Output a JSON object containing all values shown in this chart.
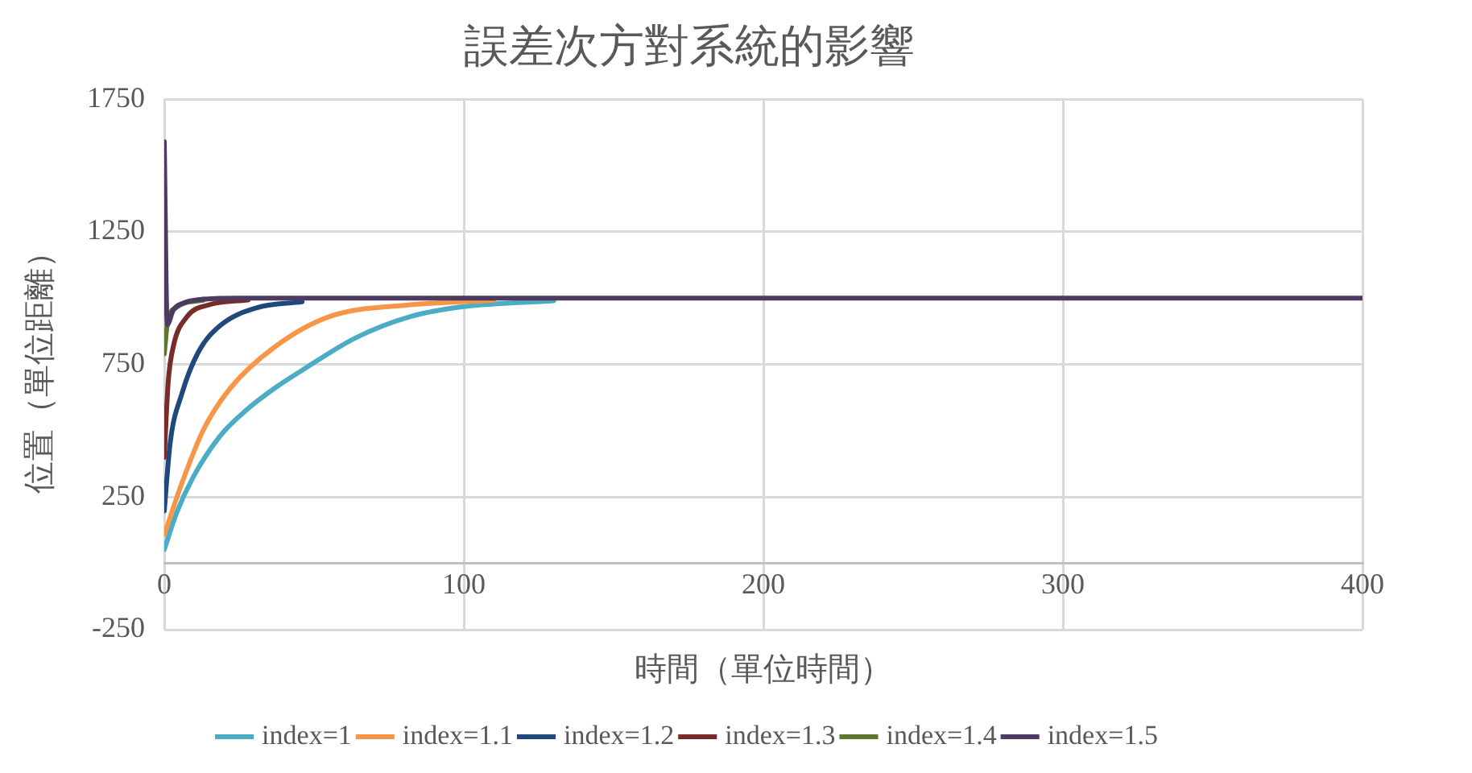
{
  "chart_data": {
    "type": "line",
    "title": "誤差次方對系統的影響",
    "xlabel": "時間（單位時間）",
    "ylabel": "位置（單位距離）",
    "xlim": [
      0,
      400
    ],
    "xticks": [
      0,
      100,
      200,
      300,
      400
    ],
    "ylim": [
      -250,
      1750
    ],
    "yticks": [
      -250,
      250,
      750,
      1250,
      1750
    ],
    "grid": true,
    "legend": "bottom",
    "marker": "none",
    "line_style": "solid",
    "series": [
      {
        "name": "index=1",
        "color": "#4bacc6",
        "x": [
          0,
          4,
          9.5,
          18.6,
          27.7,
          36.8,
          45.9,
          64,
          82,
          100,
          130
        ],
        "values": [
          52,
          187,
          322,
          480,
          581,
          660,
          727,
          851,
          930,
          968,
          990
        ]
      },
      {
        "name": "index=1.1",
        "color": "#f79646",
        "x": [
          0,
          5.8,
          13,
          22,
          37,
          55,
          82,
          110
        ],
        "values": [
          108,
          300,
          502,
          660,
          817,
          930,
          975,
          992
        ]
      },
      {
        "name": "index=1.2",
        "color": "#1f497d",
        "x": [
          0,
          2,
          5.8,
          11.3,
          18.6,
          31,
          46
        ],
        "values": [
          198,
          457,
          637,
          795,
          896,
          964,
          986
        ]
      },
      {
        "name": "index=1.3",
        "color": "#772c2a",
        "x": [
          0,
          1.3,
          3,
          7.6,
          15,
          28
        ],
        "values": [
          400,
          682,
          817,
          930,
          975,
          993
        ]
      },
      {
        "name": "index=1.4",
        "color": "#5f7530",
        "x": [
          0,
          1,
          4,
          13
        ],
        "values": [
          790,
          900,
          965,
          992
        ]
      },
      {
        "name": "index=1.5",
        "color": "#4d3b62",
        "x": [
          0,
          1,
          3,
          6,
          12,
          25,
          200,
          300,
          400
        ],
        "values": [
          1590,
          900,
          955,
          980,
          995,
          1000,
          1000,
          1000,
          1000
        ]
      }
    ]
  }
}
